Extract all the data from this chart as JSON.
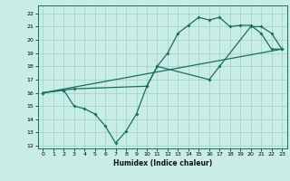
{
  "xlabel": "Humidex (Indice chaleur)",
  "xlim": [
    -0.5,
    23.5
  ],
  "ylim": [
    11.8,
    22.6
  ],
  "yticks": [
    12,
    13,
    14,
    15,
    16,
    17,
    18,
    19,
    20,
    21,
    22
  ],
  "xticks": [
    0,
    1,
    2,
    3,
    4,
    5,
    6,
    7,
    8,
    9,
    10,
    11,
    12,
    13,
    14,
    15,
    16,
    17,
    18,
    19,
    20,
    21,
    22,
    23
  ],
  "bg_color": "#c8ece6",
  "line_color": "#1a6e60",
  "line_straight": {
    "x": [
      0,
      23
    ],
    "y": [
      16.0,
      19.3
    ]
  },
  "line_middle": {
    "x": [
      0,
      2,
      3,
      10,
      11,
      16,
      17,
      20,
      21,
      22,
      23
    ],
    "y": [
      16.0,
      16.2,
      16.3,
      16.5,
      18.0,
      17.0,
      18.0,
      21.0,
      21.0,
      20.5,
      19.3
    ]
  },
  "line_zigzag": {
    "x": [
      0,
      2,
      3,
      4,
      5,
      6,
      7,
      8,
      9,
      10,
      11,
      12,
      13,
      14,
      15,
      16,
      17,
      18,
      19,
      20,
      21,
      22,
      23
    ],
    "y": [
      16.0,
      16.2,
      15.0,
      14.8,
      14.4,
      13.5,
      12.2,
      13.1,
      14.4,
      16.5,
      18.0,
      19.0,
      20.5,
      21.1,
      21.7,
      21.5,
      21.7,
      21.0,
      21.1,
      21.1,
      20.5,
      19.3,
      19.3
    ]
  }
}
